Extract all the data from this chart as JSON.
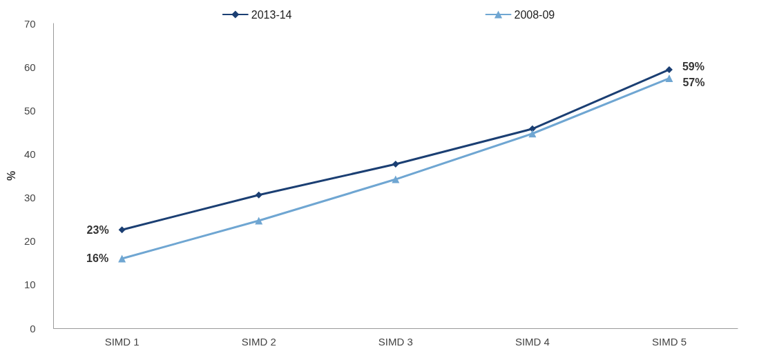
{
  "chart_data": {
    "type": "line",
    "ylabel": "%",
    "categories": [
      "SIMD 1",
      "SIMD 2",
      "SIMD 3",
      "SIMD 4",
      "SIMD 5"
    ],
    "series": [
      {
        "name": "2013-14",
        "color": "#1b3f73",
        "marker": "diamond",
        "values": [
          22.6,
          30.6,
          37.7,
          45.8,
          59.4
        ],
        "value_labels": [
          "23%",
          null,
          null,
          null,
          "59%"
        ]
      },
      {
        "name": "2008-09",
        "color": "#6fa6d2",
        "marker": "triangle",
        "values": [
          16.0,
          24.7,
          34.2,
          44.7,
          57.4
        ],
        "value_labels": [
          "16%",
          null,
          null,
          null,
          "57%"
        ]
      }
    ],
    "ylim": [
      0,
      70
    ],
    "yticks": [
      0,
      10,
      20,
      30,
      40,
      50,
      60,
      70
    ],
    "grid": false,
    "legend": "top",
    "line_style": "solid"
  }
}
